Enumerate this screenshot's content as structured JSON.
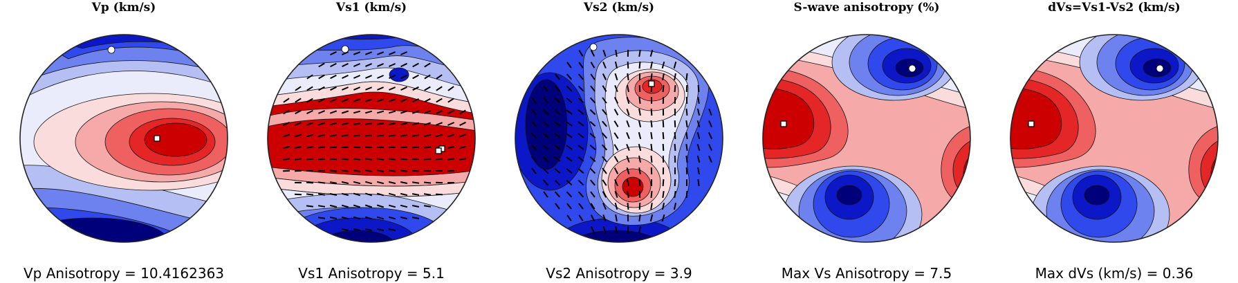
{
  "colors": {
    "c0": "#00007a",
    "c1": "#0c18c8",
    "c2": "#2f49ec",
    "c3": "#6d82ee",
    "c4": "#b6bff4",
    "c5": "#ebecfb",
    "c6": "#fbdcdc",
    "c7": "#f6a9a9",
    "c8": "#ef6060",
    "c9": "#e52626",
    "c10": "#cc0000",
    "outline": "#222222",
    "marker_fill": "#ffffff",
    "tick": "#000000"
  },
  "panels": [
    {
      "title": "Vp (km/s)",
      "caption": "Vp Anisotropy = 10.4162363"
    },
    {
      "title": "Vs1 (km/s)",
      "caption": "Vs1 Anisotropy = 5.1"
    },
    {
      "title": "Vs2 (km/s)",
      "caption": "Vs2 Anisotropy = 3.9"
    },
    {
      "title": "S-wave anisotropy (%)",
      "caption": "Max Vs Anisotropy = 7.5"
    },
    {
      "title": "dVs=Vs1-Vs2 (km/s)",
      "caption": "Max dVs (km/s) = 0.36"
    }
  ],
  "chart_data": [
    {
      "type": "heatmap",
      "title": "Vp (km/s)",
      "projection": "stereographic pole figure",
      "colorscale": "blue-white-red",
      "max_marker": "square",
      "min_marker": "circle",
      "caption": "Vp Anisotropy = 10.4162363",
      "anisotropy": 10.4162363
    },
    {
      "type": "heatmap",
      "title": "Vs1 (km/s)",
      "projection": "stereographic pole figure",
      "colorscale": "blue-white-red",
      "polarization_ticks": true,
      "caption": "Vs1 Anisotropy = 5.1",
      "anisotropy": 5.1
    },
    {
      "type": "heatmap",
      "title": "Vs2 (km/s)",
      "projection": "stereographic pole figure",
      "colorscale": "blue-white-red",
      "polarization_ticks": true,
      "caption": "Vs2 Anisotropy = 3.9",
      "anisotropy": 3.9
    },
    {
      "type": "heatmap",
      "title": "S-wave anisotropy (%)",
      "projection": "stereographic pole figure",
      "colorscale": "blue-white-red",
      "caption": "Max Vs Anisotropy = 7.5",
      "max_anisotropy_percent": 7.5
    },
    {
      "type": "heatmap",
      "title": "dVs=Vs1-Vs2 (km/s)",
      "projection": "stereographic pole figure",
      "colorscale": "blue-white-red",
      "caption": "Max dVs (km/s) = 0.36",
      "max_dvs_km_s": 0.36
    }
  ]
}
